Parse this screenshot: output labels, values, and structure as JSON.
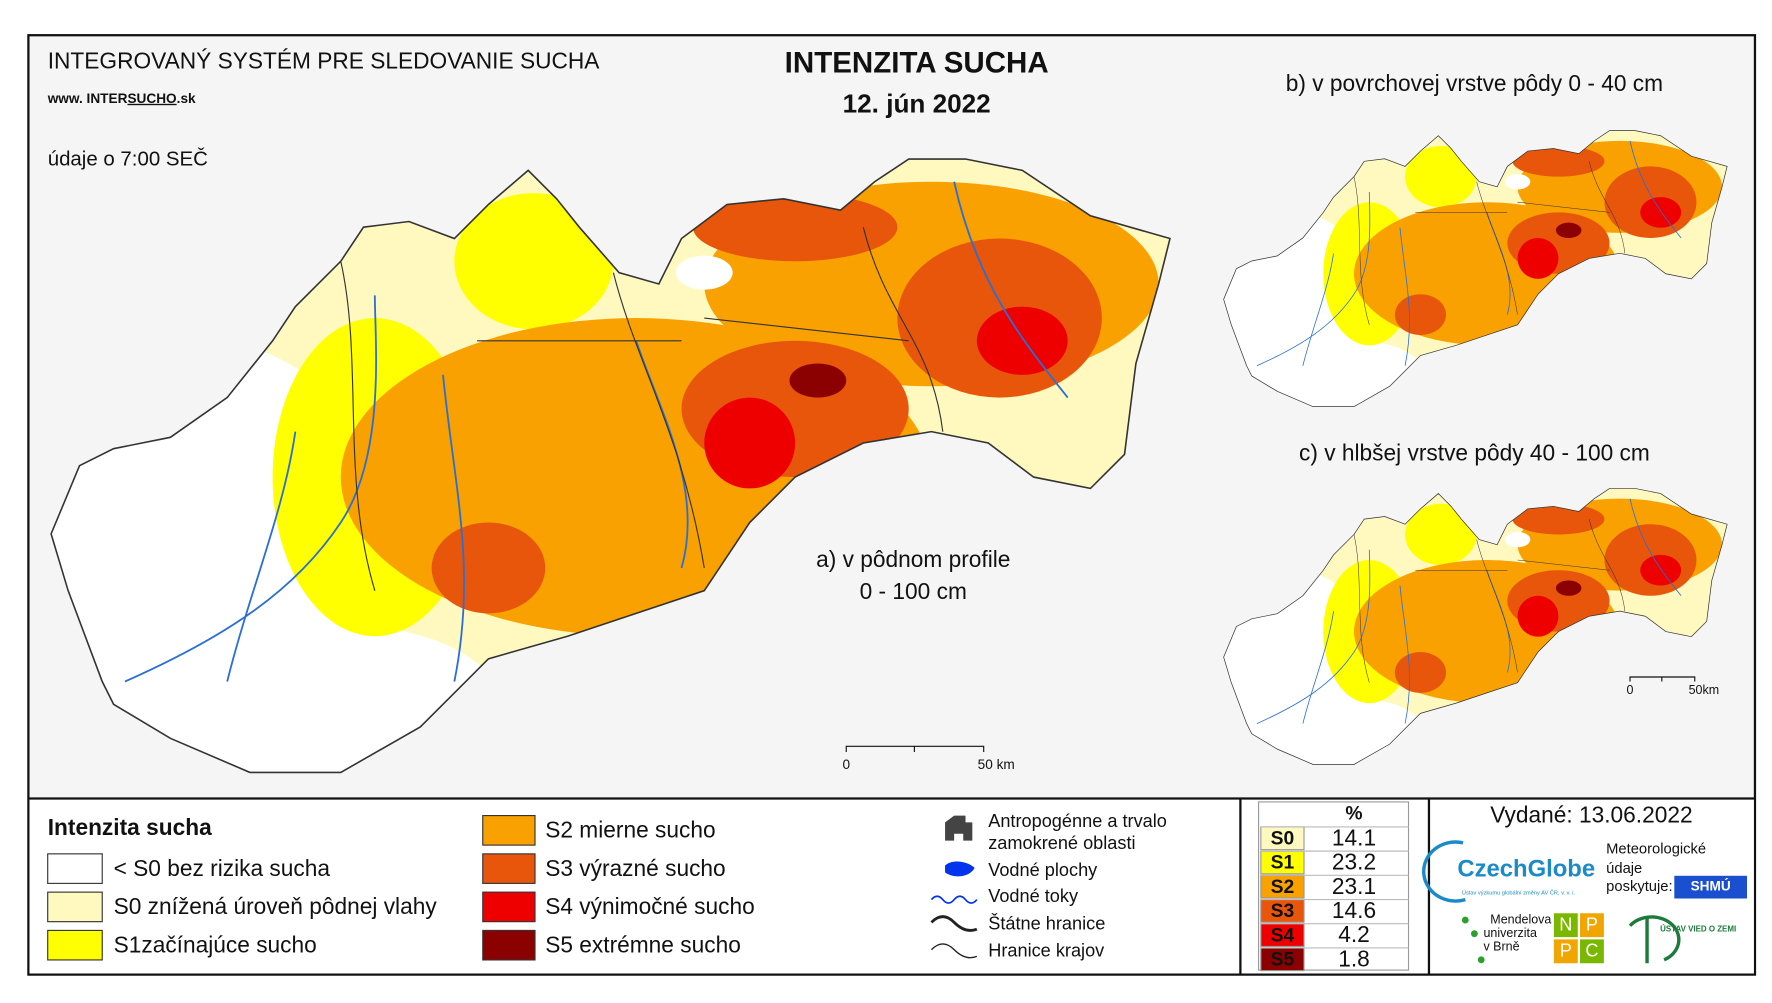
{
  "header": {
    "system_title": "INTEGROVANÝ SYSTÉM PRE SLEDOVANIE SUCHA",
    "website_prefix": "www. INTER",
    "website_mid": "SUCHO",
    "website_suffix": ".sk",
    "data_time": "údaje o 7:00 SEČ",
    "title": "INTENZITA SUCHA",
    "date": "12. jún 2022"
  },
  "maps": {
    "a": {
      "label_line1": "a) v pôdnom profile",
      "label_line2": "0 - 100 cm",
      "scale_start": "0",
      "scale_end": "50 km"
    },
    "b": {
      "label": "b) v povrchovej vrstve pôdy 0 - 40 cm"
    },
    "c": {
      "label": "c) v hlbšej vrstve pôdy 40 - 100 cm",
      "scale_start": "0",
      "scale_end": "50km"
    }
  },
  "legend": {
    "title": "Intenzita sucha",
    "classes": [
      {
        "label": "< S0 bez rizika sucha",
        "color": "#ffffff"
      },
      {
        "label": "S0 znížená úroveň pôdnej vlahy",
        "color": "#fff8bf"
      },
      {
        "label": "S1začínajúce sucho",
        "color": "#ffff00"
      },
      {
        "label": "S2 mierne sucho",
        "color": "#f8a100"
      },
      {
        "label": "S3 výrazné sucho",
        "color": "#e8560b"
      },
      {
        "label": "S4 výnimočné sucho",
        "color": "#ee0000"
      },
      {
        "label": "S5 extrémne sucho",
        "color": "#8b0000"
      }
    ]
  },
  "map_legend": {
    "anthropogenic": [
      "Antropogénne a trvalo",
      "zamokrené oblasti"
    ],
    "water_bodies": "Vodné plochy",
    "water_courses": "Vodné toky",
    "state_borders": "Štátne hranice",
    "region_borders": "Hranice krajov"
  },
  "stats": {
    "header": "%",
    "rows": [
      {
        "class": "S0",
        "percent": 14.1,
        "color": "#fff8bf"
      },
      {
        "class": "S1",
        "percent": 23.2,
        "color": "#ffff00"
      },
      {
        "class": "S2",
        "percent": 23.1,
        "color": "#f8a100"
      },
      {
        "class": "S3",
        "percent": 14.6,
        "color": "#e8560b"
      },
      {
        "class": "S4",
        "percent": 4.2,
        "color": "#ee0000"
      },
      {
        "class": "S5",
        "percent": 1.8,
        "color": "#8b0000"
      }
    ]
  },
  "footer": {
    "issued": "Vydané: 13.06.2022",
    "czechglobe": "CzechGlobe",
    "czechglobe_sub": "Ústav výzkumu globální změny AV ČR, v. v. i.",
    "meteo": [
      "Meteorologické",
      "údaje",
      "poskytuje:"
    ],
    "shmu": "SHMÚ",
    "mendel": [
      "Mendelova",
      "univerzita",
      "v Brně"
    ],
    "nppc": [
      "N",
      "P",
      "P",
      "C"
    ],
    "uvz": "ÚSTAV VIED O ZEMI"
  }
}
